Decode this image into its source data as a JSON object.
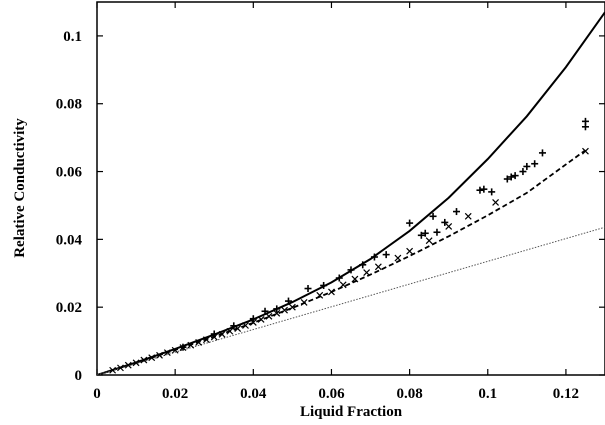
{
  "chart_data": {
    "type": "scatter",
    "title": "",
    "xlabel": "Liquid Fraction",
    "ylabel": "Relative Conductivity",
    "xlim": [
      0,
      0.13
    ],
    "ylim": [
      0,
      0.11
    ],
    "x_ticks": [
      0,
      0.02,
      0.04,
      0.06,
      0.08,
      0.1,
      0.12
    ],
    "x_tick_labels": [
      "0",
      "0.02",
      "0.04",
      "0.06",
      "0.08",
      "0.1",
      "0.12"
    ],
    "y_ticks": [
      0,
      0.02,
      0.04,
      0.06,
      0.08,
      0.1
    ],
    "y_tick_labels": [
      "0",
      "0.02",
      "0.04",
      "0.06",
      "0.08",
      "0.1"
    ],
    "grid": false,
    "legend": "none",
    "series": [
      {
        "style": "solid-line",
        "x": [
          0,
          0.01,
          0.02,
          0.03,
          0.04,
          0.05,
          0.06,
          0.07,
          0.08,
          0.09,
          0.1,
          0.11,
          0.12,
          0.13
        ],
        "values": [
          0,
          0.0037,
          0.0077,
          0.0119,
          0.0164,
          0.0215,
          0.0273,
          0.0342,
          0.0425,
          0.0523,
          0.0637,
          0.0763,
          0.0908,
          0.107
        ]
      },
      {
        "style": "dashed-line",
        "x": [
          0,
          0.01,
          0.02,
          0.03,
          0.04,
          0.05,
          0.06,
          0.07,
          0.08,
          0.09,
          0.1,
          0.11,
          0.125
        ],
        "values": [
          0,
          0.0036,
          0.0074,
          0.0113,
          0.0154,
          0.0198,
          0.0245,
          0.0296,
          0.0351,
          0.0409,
          0.0471,
          0.0537,
          0.0663
        ]
      },
      {
        "style": "dotted-line",
        "x": [
          0,
          0.13
        ],
        "values": [
          0,
          0.0436
        ]
      },
      {
        "style": "x-markers",
        "x": [
          0.004,
          0.006,
          0.008,
          0.01,
          0.012,
          0.014,
          0.016,
          0.018,
          0.02,
          0.022,
          0.024,
          0.026,
          0.028,
          0.03,
          0.032,
          0.034,
          0.036,
          0.038,
          0.04,
          0.042,
          0.044,
          0.046,
          0.048,
          0.05,
          0.053,
          0.057,
          0.06,
          0.063,
          0.066,
          0.069,
          0.072,
          0.077,
          0.08,
          0.085,
          0.09,
          0.095,
          0.102,
          0.125
        ],
        "values": [
          0.0014,
          0.0021,
          0.0029,
          0.0036,
          0.0044,
          0.0051,
          0.0058,
          0.0066,
          0.0073,
          0.0081,
          0.0088,
          0.0096,
          0.0104,
          0.0112,
          0.012,
          0.0129,
          0.0137,
          0.0146,
          0.0155,
          0.0164,
          0.0173,
          0.0182,
          0.0191,
          0.02,
          0.0214,
          0.0235,
          0.0245,
          0.0266,
          0.0283,
          0.0302,
          0.0319,
          0.0345,
          0.0365,
          0.0396,
          0.0438,
          0.0468,
          0.0509,
          0.066
        ]
      },
      {
        "style": "plus-markers",
        "x": [
          0.022,
          0.03,
          0.035,
          0.04,
          0.043,
          0.046,
          0.049,
          0.054,
          0.058,
          0.062,
          0.065,
          0.068,
          0.071,
          0.074,
          0.08,
          0.083,
          0.084,
          0.086,
          0.087,
          0.089,
          0.092,
          0.098,
          0.099,
          0.101,
          0.105,
          0.106,
          0.107,
          0.109,
          0.11,
          0.112,
          0.114,
          0.125,
          0.125
        ],
        "values": [
          0.0082,
          0.0121,
          0.0145,
          0.0166,
          0.0188,
          0.0195,
          0.0218,
          0.0255,
          0.0264,
          0.0286,
          0.031,
          0.0325,
          0.0348,
          0.0355,
          0.0448,
          0.0412,
          0.0418,
          0.0468,
          0.0421,
          0.045,
          0.0482,
          0.0545,
          0.0548,
          0.054,
          0.0578,
          0.0584,
          0.0588,
          0.06,
          0.0615,
          0.0623,
          0.0655,
          0.0732,
          0.0748
        ]
      }
    ]
  }
}
